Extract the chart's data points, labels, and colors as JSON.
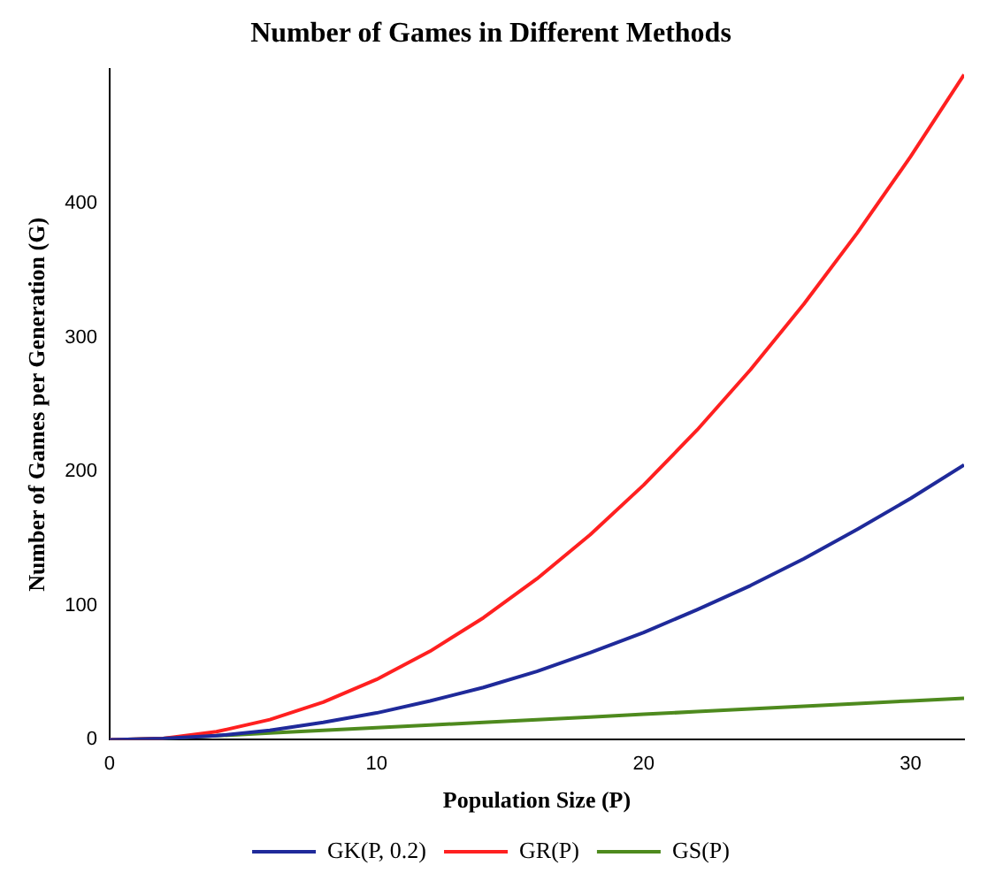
{
  "chart_data": {
    "type": "line",
    "title": "Number of Games in Different Methods",
    "xlabel": "Population Size (P)",
    "ylabel": "Number of Games per Generation (G)",
    "x": [
      0,
      2,
      4,
      6,
      8,
      10,
      12,
      14,
      16,
      18,
      20,
      22,
      24,
      26,
      28,
      30,
      32
    ],
    "series": [
      {
        "name": "GK(P, 0.2)",
        "color": "#1f2a9a",
        "values": [
          0,
          1,
          3,
          7,
          13,
          20,
          29,
          39,
          51,
          65,
          80,
          97,
          115,
          135,
          157,
          180,
          205
        ]
      },
      {
        "name": "GR(P)",
        "color": "#ff2020",
        "values": [
          0,
          1,
          6,
          15,
          28,
          45,
          66,
          91,
          120,
          153,
          190,
          231,
          276,
          325,
          378,
          435,
          496
        ]
      },
      {
        "name": "GS(P)",
        "color": "#4e8a1e",
        "values": [
          0,
          1,
          3,
          5,
          7,
          9,
          11,
          13,
          15,
          17,
          19,
          21,
          23,
          25,
          27,
          29,
          31
        ]
      }
    ],
    "xlim": [
      0,
      32
    ],
    "xticks": [
      0,
      10,
      20,
      30
    ],
    "ylim": [
      0,
      500
    ],
    "yticks": [
      0,
      100,
      200,
      300,
      400
    ],
    "grid": false,
    "legend": "bottom",
    "marker": "none",
    "line_style": "solid"
  }
}
